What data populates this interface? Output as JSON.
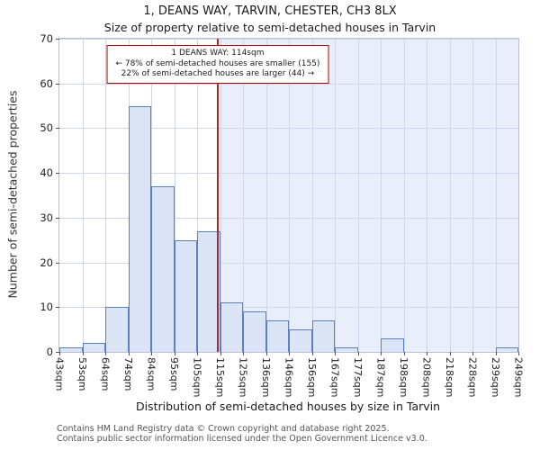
{
  "title": "1, DEANS WAY, TARVIN, CHESTER, CH3 8LX",
  "subtitle": "Size of property relative to semi-detached houses in Tarvin",
  "annotation": {
    "line1": "1 DEANS WAY: 114sqm",
    "line2": "← 78% of semi-detached houses are smaller (155)",
    "line3": "22% of semi-detached houses are larger (44) →"
  },
  "footer": {
    "line1": "Contains HM Land Registry data © Crown copyright and database right 2025.",
    "line2": "Contains public sector information licensed under the Open Government Licence v3.0."
  },
  "chart_data": {
    "type": "bar",
    "title": "1, DEANS WAY, TARVIN, CHESTER, CH3 8LX",
    "subtitle": "Size of property relative to semi-detached houses in Tarvin",
    "xlabel": "Distribution of semi-detached houses by size in Tarvin",
    "ylabel": "Number of semi-detached properties",
    "categories": [
      "43sqm",
      "53sqm",
      "64sqm",
      "74sqm",
      "84sqm",
      "95sqm",
      "105sqm",
      "115sqm",
      "125sqm",
      "136sqm",
      "146sqm",
      "156sqm",
      "167sqm",
      "177sqm",
      "187sqm",
      "198sqm",
      "208sqm",
      "218sqm",
      "228sqm",
      "239sqm",
      "249sqm"
    ],
    "values": [
      1,
      2,
      10,
      55,
      37,
      25,
      27,
      11,
      9,
      7,
      5,
      7,
      1,
      0,
      3,
      0,
      0,
      0,
      0,
      1
    ],
    "yticks": [
      0,
      10,
      20,
      30,
      40,
      50,
      60,
      70
    ],
    "ylim": [
      0,
      70
    ],
    "grid": true,
    "legend": false,
    "marker": {
      "value": 114,
      "label": "1 DEANS WAY: 114sqm",
      "smaller_pct": 78,
      "smaller_count": 155,
      "larger_pct": 22,
      "larger_count": 44
    },
    "colors": {
      "bar_fill": "#dbe5f5",
      "bar_border": "#5b7fc0",
      "marker_line": "#a03030",
      "annotation_border": "#aa0000",
      "shade_right_of_marker": "#e9effa",
      "gridline": "#cdd7e8",
      "plot_border": "#b9c2d4"
    }
  }
}
